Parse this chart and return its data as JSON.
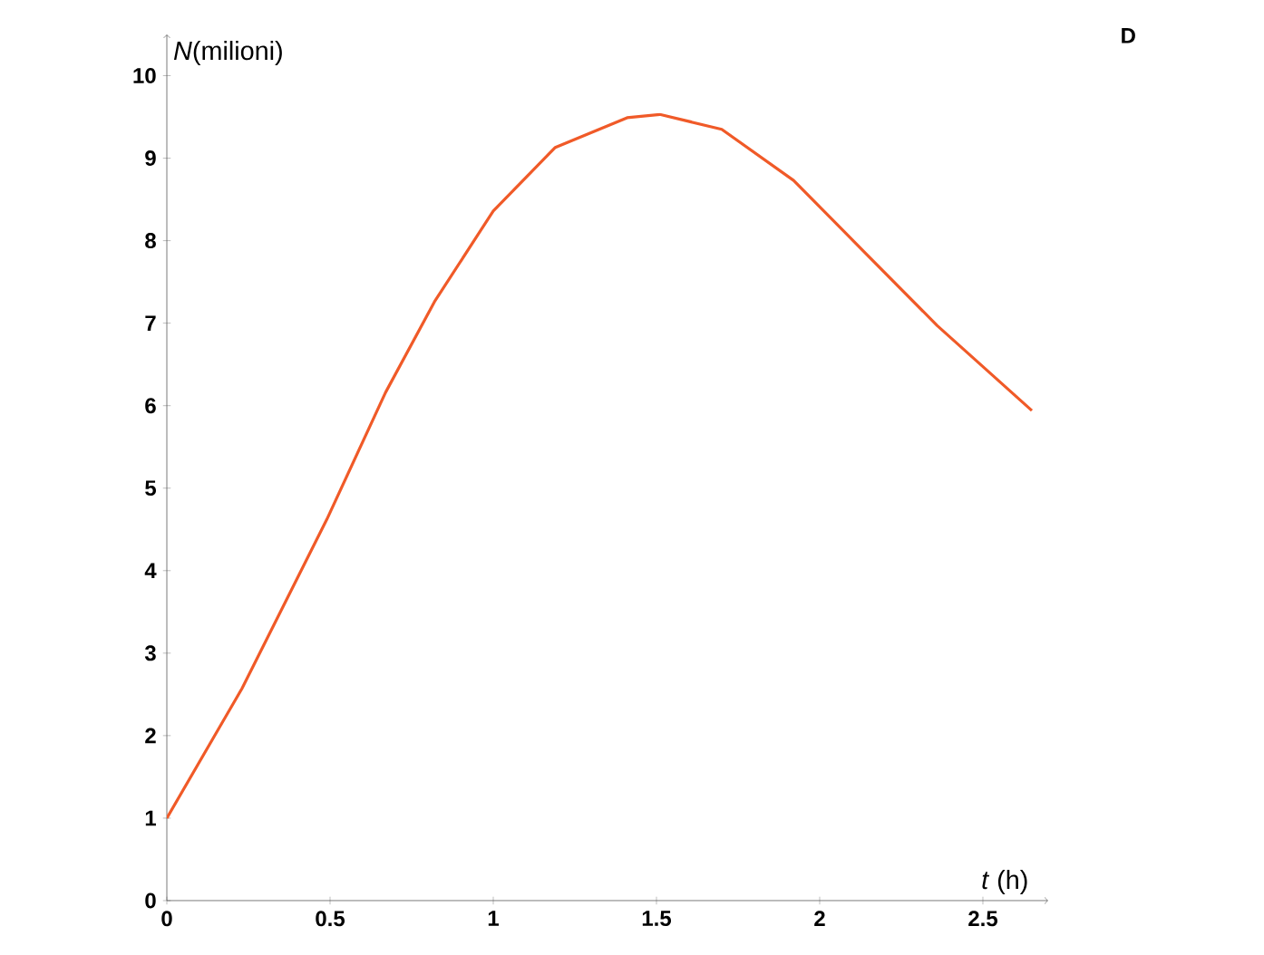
{
  "chart_data": {
    "type": "line",
    "xlabel": "*t* (h)",
    "ylabel": "*N*(milioni)",
    "annotations": [
      "D"
    ],
    "x": [
      0,
      0.23,
      0.49,
      0.67,
      0.82,
      1.0,
      1.19,
      1.41,
      1.51,
      1.7,
      1.92,
      2.14,
      2.36,
      2.65
    ],
    "series": [
      {
        "color": "#f05a28",
        "values": [
          1.0,
          2.57,
          4.62,
          6.16,
          7.26,
          8.36,
          9.13,
          9.49,
          9.53,
          9.35,
          8.73,
          7.85,
          6.97,
          5.94
        ]
      }
    ],
    "xlim": [
      0,
      2.7
    ],
    "ylim": [
      0,
      10.5
    ],
    "xticks": [
      0,
      0.5,
      1,
      1.5,
      2,
      2.5
    ],
    "yticks": [
      0,
      1,
      2,
      3,
      4,
      5,
      6,
      7,
      8,
      9,
      10
    ],
    "grid": false,
    "marker": "none",
    "line_style": "solid"
  }
}
